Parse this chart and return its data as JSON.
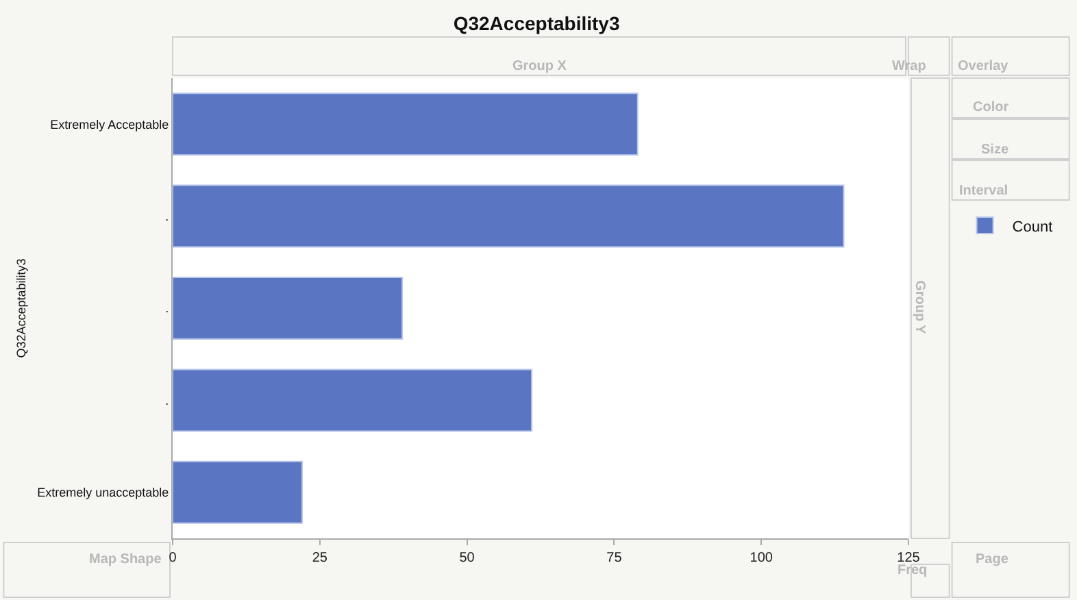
{
  "chart_data": {
    "type": "bar",
    "orientation": "horizontal",
    "title": "Q32Acceptability3",
    "ylabel": "Q32Acceptability3",
    "categories": [
      "Extremely Acceptable",
      ".",
      ".",
      ".",
      "Extremely unacceptable"
    ],
    "series": [
      {
        "name": "Count",
        "color": "#5a76c2",
        "values": [
          79,
          114,
          39,
          61,
          22
        ]
      }
    ],
    "xlim": [
      0,
      125
    ],
    "xticks": [
      0,
      25,
      50,
      75,
      100,
      125
    ],
    "legend": "right",
    "annotations": [
      "Group X",
      "Wrap",
      "Overlay",
      "Color",
      "Size",
      "Interval",
      "Group Y",
      "Map Shape",
      "Freq",
      "Page"
    ]
  }
}
